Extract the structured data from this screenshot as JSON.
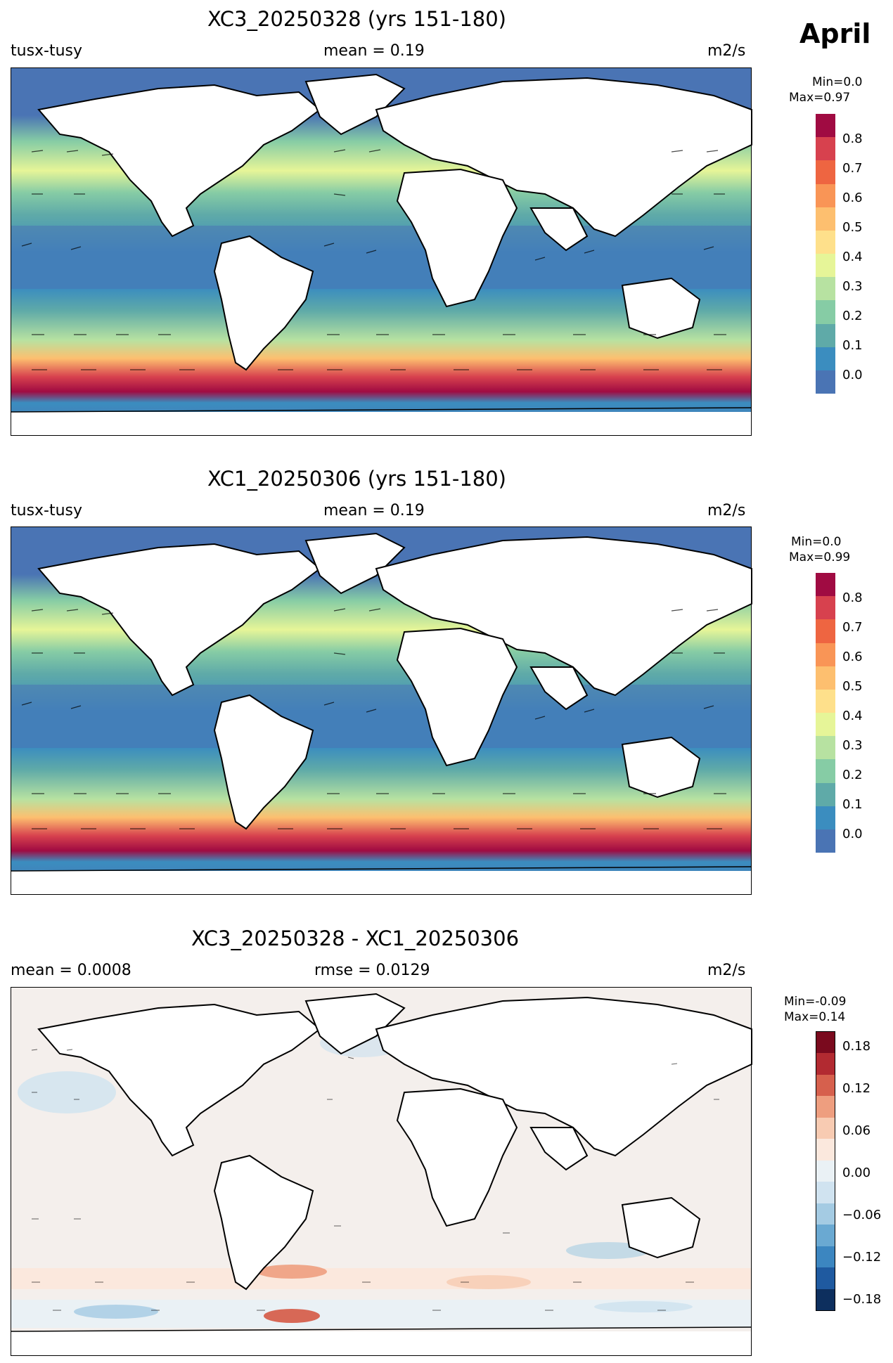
{
  "month": "April",
  "panels": [
    {
      "title": "XC3_20250328 (yrs 151-180)",
      "left_label": "tusx-tusy",
      "center_label": "mean = 0.19",
      "units": "m2/s",
      "colorbar": {
        "min_text": "Min=0.0",
        "max_text": "Max=0.97",
        "ticks": [
          "0.0",
          "0.1",
          "0.2",
          "0.3",
          "0.4",
          "0.5",
          "0.6",
          "0.7",
          "0.8"
        ],
        "colors": [
          "#4a74b4",
          "#3b8dbf",
          "#5faaa8",
          "#86cca5",
          "#b7e2a1",
          "#e6f598",
          "#fee08b",
          "#fdbf6f",
          "#f99556",
          "#ee6541",
          "#d7414e",
          "#a00b42"
        ]
      }
    },
    {
      "title": "XC1_20250306 (yrs 151-180)",
      "left_label": "tusx-tusy",
      "center_label": "mean = 0.19",
      "units": "m2/s",
      "colorbar": {
        "min_text": "Min=0.0",
        "max_text": "Max=0.99",
        "ticks": [
          "0.0",
          "0.1",
          "0.2",
          "0.3",
          "0.4",
          "0.5",
          "0.6",
          "0.7",
          "0.8"
        ],
        "colors": [
          "#4a74b4",
          "#3b8dbf",
          "#5faaa8",
          "#86cca5",
          "#b7e2a1",
          "#e6f598",
          "#fee08b",
          "#fdbf6f",
          "#f99556",
          "#ee6541",
          "#d7414e",
          "#a00b42"
        ]
      }
    },
    {
      "title": "XC3_20250328 - XC1_20250306",
      "left_label": "mean = 0.0008",
      "center_label": "rmse = 0.0129",
      "units": "m2/s",
      "colorbar": {
        "min_text": "Min=-0.09",
        "max_text": "Max=0.14",
        "ticks": [
          "−0.18",
          "−0.12",
          "−0.06",
          "0.00",
          "0.06",
          "0.12",
          "0.18"
        ],
        "colors": [
          "#0d2f5e",
          "#1f5aa0",
          "#3c86c0",
          "#6aa9d2",
          "#a4cbe3",
          "#d0e3f0",
          "#eaf1f5",
          "#fbe8dd",
          "#f8cbb2",
          "#ee9e7f",
          "#d6604d",
          "#b22a31",
          "#7a0a1e"
        ]
      }
    }
  ]
}
